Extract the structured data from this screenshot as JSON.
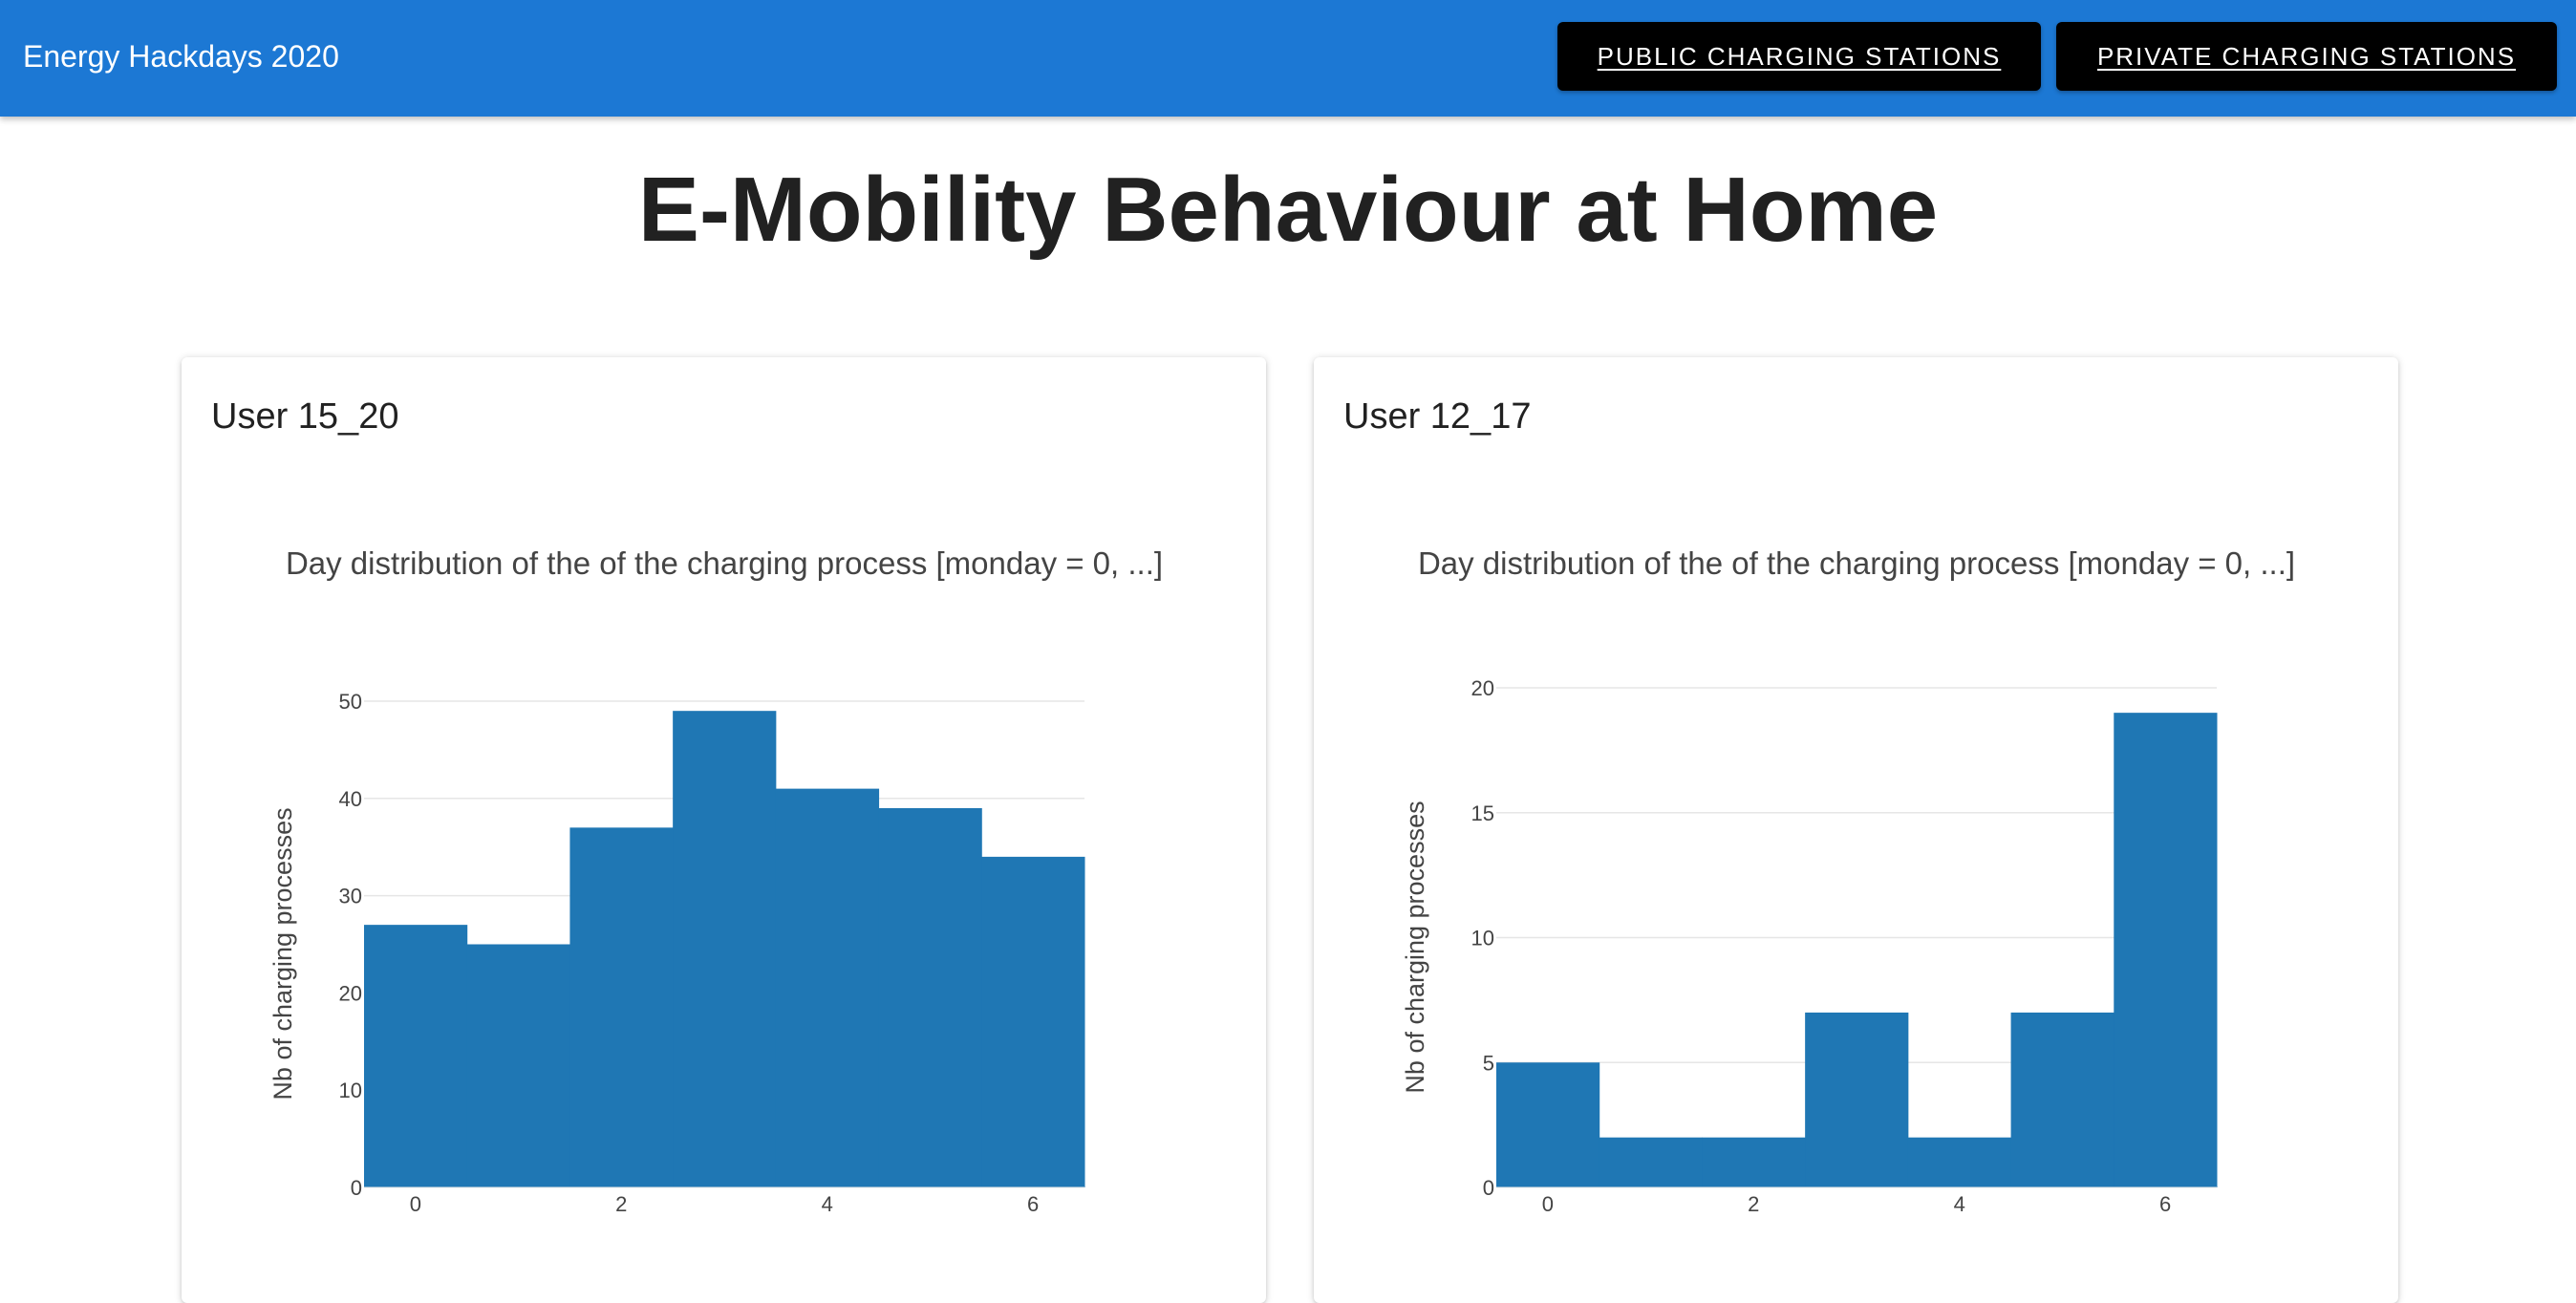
{
  "app": {
    "title": "Energy Hackdays 2020"
  },
  "nav": {
    "public_label": "PUBLIC CHARGING STATIONS",
    "private_label": "PRIVATE CHARGING STATIONS"
  },
  "page": {
    "title": "E-Mobility Behaviour at Home"
  },
  "colors": {
    "appbar": "#1c78d4",
    "bar": "#1f77b4",
    "nav_button": "#000000"
  },
  "cards": [
    {
      "title": "User 15_20"
    },
    {
      "title": "User 12_17"
    }
  ],
  "chart_data": [
    {
      "type": "bar",
      "title": "Day distribution of the of the charging process [monday = 0, ...]",
      "xlabel": "",
      "ylabel": "Nb of charging processes",
      "categories": [
        0,
        1,
        2,
        3,
        4,
        5,
        6
      ],
      "values": [
        27,
        25,
        37,
        49,
        41,
        39,
        34
      ],
      "ylim": [
        0,
        50
      ],
      "yticks": [
        0,
        10,
        20,
        30,
        40,
        50
      ],
      "xticks": [
        0,
        2,
        4,
        6
      ],
      "grid": true
    },
    {
      "type": "bar",
      "title": "Day distribution of the of the charging process [monday = 0, ...]",
      "xlabel": "",
      "ylabel": "Nb of charging processes",
      "categories": [
        0,
        1,
        2,
        3,
        4,
        5,
        6
      ],
      "values": [
        5,
        2,
        2,
        7,
        2,
        7,
        19
      ],
      "ylim": [
        0,
        20
      ],
      "yticks": [
        0,
        5,
        10,
        15,
        20
      ],
      "xticks": [
        0,
        2,
        4,
        6
      ],
      "grid": true
    }
  ]
}
